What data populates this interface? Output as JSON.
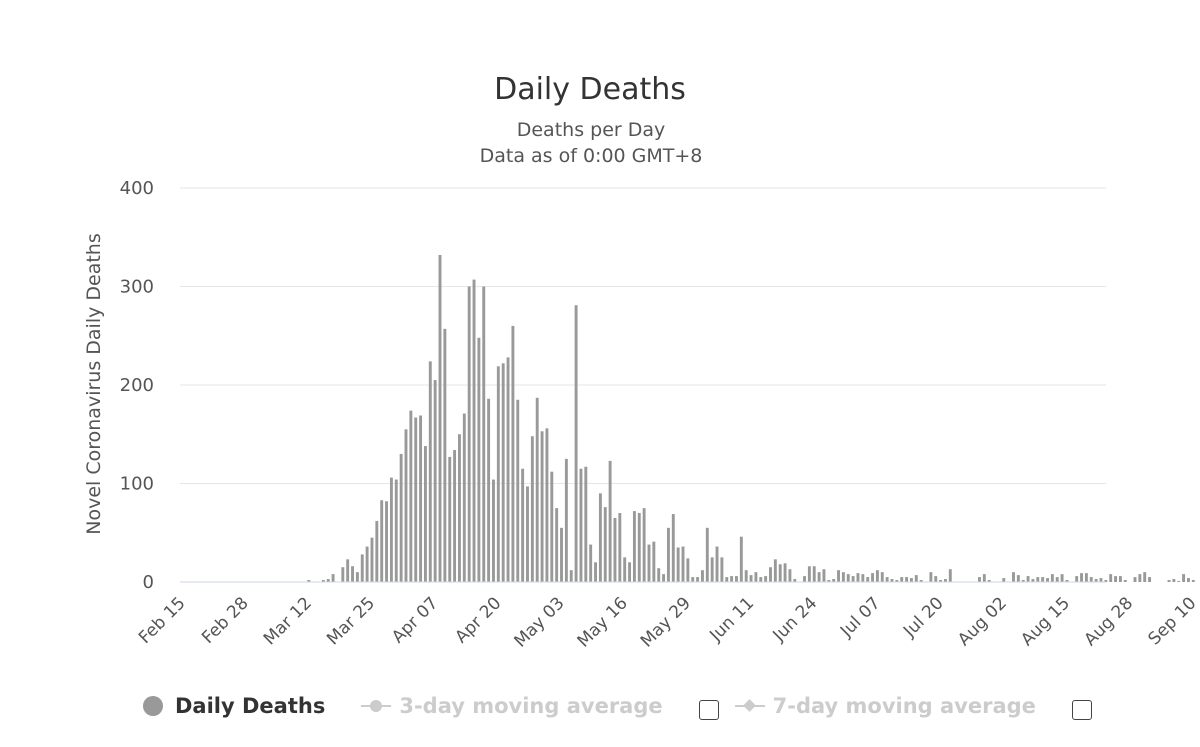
{
  "chart_data": {
    "type": "bar",
    "title": "Daily Deaths",
    "subtitle_lines": [
      "Deaths per Day",
      "Data as of 0:00 GMT+8"
    ],
    "ylabel": "Novel Coronavirus Daily Deaths",
    "xlabel": "",
    "ylim": [
      0,
      400
    ],
    "y_ticks": [
      0,
      100,
      200,
      300,
      400
    ],
    "grid": true,
    "first_date": "Feb 15",
    "x_tick_labels": [
      "Feb 15",
      "Feb 28",
      "Mar 12",
      "Mar 25",
      "Apr 07",
      "Apr 20",
      "May 03",
      "May 16",
      "May 29",
      "Jun 11",
      "Jun 24",
      "Jul 07",
      "Jul 20",
      "Aug 02",
      "Aug 15",
      "Aug 28",
      "Sep 10"
    ],
    "x_tick_interval_days": 13,
    "series": [
      {
        "name": "Daily Deaths",
        "color": "#999999",
        "values": [
          0,
          0,
          0,
          0,
          0,
          0,
          0,
          0,
          0,
          0,
          0,
          0,
          0,
          0,
          0,
          0,
          0,
          0,
          0,
          0,
          0,
          0,
          0,
          0,
          0,
          0,
          2,
          0,
          0,
          2,
          3,
          8,
          0,
          15,
          23,
          16,
          10,
          28,
          36,
          45,
          62,
          83,
          82,
          106,
          104,
          130,
          155,
          174,
          167,
          169,
          138,
          224,
          205,
          332,
          257,
          127,
          134,
          150,
          171,
          300,
          307,
          248,
          300,
          186,
          104,
          219,
          222,
          228,
          260,
          185,
          115,
          97,
          148,
          187,
          153,
          156,
          112,
          75,
          55,
          125,
          12,
          281,
          115,
          117,
          38,
          20,
          90,
          76,
          123,
          65,
          70,
          25,
          20,
          72,
          70,
          75,
          38,
          41,
          14,
          8,
          55,
          69,
          35,
          36,
          24,
          5,
          5,
          12,
          55,
          25,
          36,
          25,
          5,
          6,
          6,
          46,
          12,
          7,
          10,
          5,
          6,
          15,
          23,
          18,
          19,
          13,
          3,
          0,
          6,
          16,
          16,
          10,
          13,
          2,
          3,
          12,
          10,
          8,
          6,
          9,
          8,
          5,
          9,
          12,
          10,
          5,
          3,
          2,
          5,
          5,
          4,
          7,
          2,
          0,
          10,
          6,
          2,
          3,
          13,
          0,
          0,
          0,
          0,
          0,
          5,
          8,
          2,
          0,
          0,
          4,
          0,
          10,
          7,
          2,
          6,
          3,
          5,
          5,
          4,
          8,
          5,
          8,
          2,
          0,
          6,
          9,
          9,
          5,
          3,
          4,
          2,
          8,
          6,
          6,
          2,
          0,
          5,
          8,
          10,
          5,
          0,
          0,
          0,
          2,
          3,
          1,
          8,
          4,
          2
        ]
      },
      {
        "name": "3-day moving average",
        "visible": false,
        "values": []
      },
      {
        "name": "7-day moving average",
        "visible": false,
        "values": []
      }
    ]
  },
  "colors": {
    "bar": "#999999",
    "grid": "#e6e6e6",
    "legend_inactive": "#cccccc"
  },
  "legend": {
    "items": [
      {
        "label": "Daily Deaths",
        "active": true
      },
      {
        "label": "3-day moving average",
        "active": false
      },
      {
        "label": "7-day moving average",
        "active": false
      }
    ]
  }
}
